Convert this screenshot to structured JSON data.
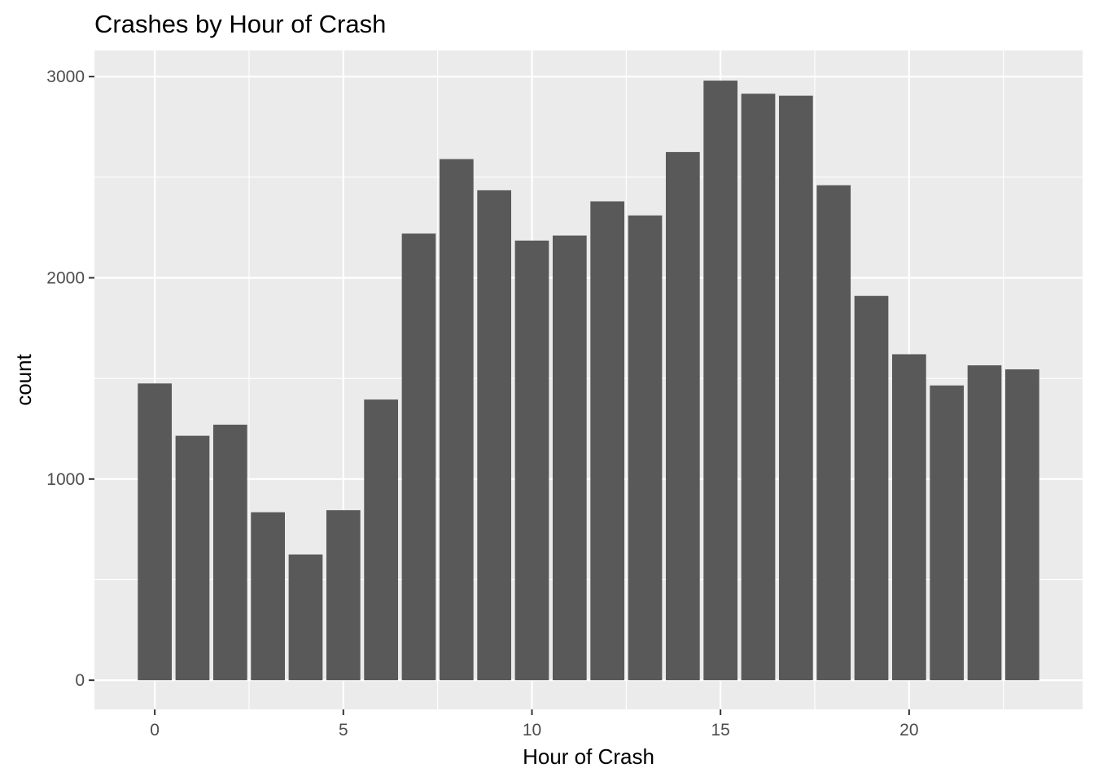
{
  "chart_data": {
    "type": "bar",
    "title": "Crashes by Hour of Crash",
    "xlabel": "Hour of Crash",
    "ylabel": "count",
    "x": [
      0,
      1,
      2,
      3,
      4,
      5,
      6,
      7,
      8,
      9,
      10,
      11,
      12,
      13,
      14,
      15,
      16,
      17,
      18,
      19,
      20,
      21,
      22,
      23
    ],
    "values": [
      1475,
      1215,
      1270,
      835,
      625,
      845,
      1395,
      2220,
      2590,
      2435,
      2185,
      2210,
      2380,
      2310,
      2625,
      2980,
      2915,
      2905,
      2460,
      1910,
      1620,
      1465,
      1565,
      1545
    ],
    "xlim": [
      -1.6,
      24.6
    ],
    "ylim": [
      -145,
      3130
    ],
    "x_ticks": [
      0,
      5,
      10,
      15,
      20
    ],
    "y_ticks": [
      0,
      1000,
      2000,
      3000
    ],
    "x_minor_ticks": [
      2.5,
      7.5,
      12.5,
      17.5,
      22.5
    ],
    "y_minor_ticks": [
      500,
      1500,
      2500
    ],
    "grid": true,
    "panel_color": "#ebebeb",
    "bar_color": "#595959",
    "legend": "none"
  }
}
